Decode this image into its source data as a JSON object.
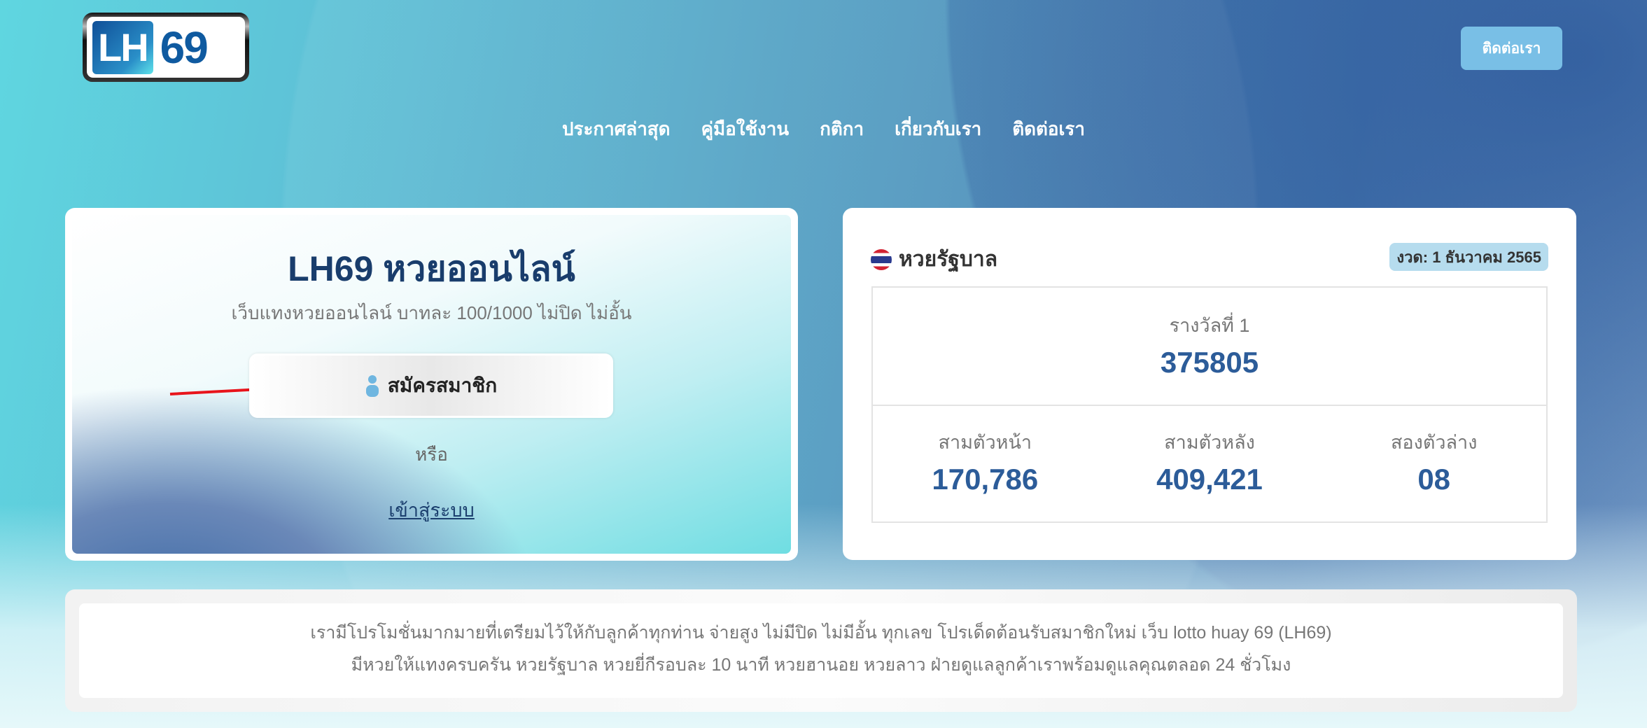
{
  "header": {
    "logo_text": "LH69",
    "contact_button": "ติดต่อเรา",
    "nav": [
      "ประกาศล่าสุด",
      "คู่มือใช้งาน",
      "กติกา",
      "เกี่ยวกับเรา",
      "ติดต่อเรา"
    ]
  },
  "hero": {
    "title": "LH69 หวยออนไลน์",
    "subtitle": "เว็บแทงหวยออนไลน์ บาทละ 100/1000 ไม่ปิด ไม่อั้น",
    "signup_label": "สมัครสมาชิก",
    "signup_icon": "user-icon",
    "or_text": "หรือ",
    "login_link": "เข้าสู่ระบบ"
  },
  "lottery": {
    "title": "หวยรัฐบาล",
    "flag_icon": "thai-flag-icon",
    "draw_badge": "งวด: 1 ธันวาคม 2565",
    "first_prize_label": "รางวัลที่ 1",
    "first_prize": "375805",
    "results": [
      {
        "label": "สามตัวหน้า",
        "value": "170,786"
      },
      {
        "label": "สามตัวหลัง",
        "value": "409,421"
      },
      {
        "label": "สองตัวล่าง",
        "value": "08"
      }
    ]
  },
  "promo": {
    "line1": "เรามีโปรโมชั่นมากมายที่เตรียมไว้ให้กับลูกค้าทุกท่าน จ่ายสูง ไม่มีปิด ไม่มีอั้น ทุกเลข โปรเด็ดต้อนรับสมาชิกใหม่ เว็บ lotto huay 69 (LH69)",
    "line2": "มีหวยให้แทงครบครัน หวยรัฐบาล หวยยี่กีรอบละ 10 นาที หวยฮานอย หวยลาว ฝ่ายดูแลลูกค้าเราพร้อมดูแลคุณตลอด 24 ชั่วโมง"
  },
  "colors": {
    "accent": "#79bfe6",
    "number": "#2c5c99",
    "title": "#193d6c",
    "arrow": "#e8141b"
  }
}
